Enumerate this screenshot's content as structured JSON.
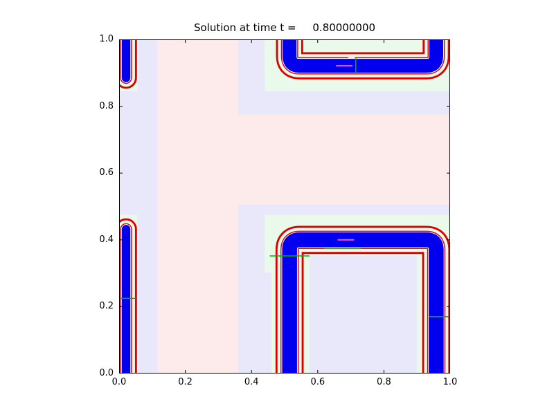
{
  "figure": {
    "background": "#ffffff"
  },
  "chart_data": {
    "type": "contour",
    "title": "Solution at time t =     0.80000000",
    "xlabel": "",
    "ylabel": "",
    "xlim": [
      0,
      1
    ],
    "ylim": [
      0,
      1
    ],
    "xticks": [
      "0.0",
      "0.2",
      "0.4",
      "0.6",
      "0.8",
      "1.0"
    ],
    "yticks": [
      "0.0",
      "0.2",
      "0.4",
      "0.6",
      "0.8",
      "1.0"
    ],
    "grid": false,
    "legend": false,
    "colors": {
      "background_lavender": "#e8e8fa",
      "background_pink": "#fdebeb",
      "background_green": "#eafaea",
      "band_blue": "#0000ee",
      "contour_red": "#dd0000",
      "contour_green": "#00b300",
      "contour_magenta": "#ff55cc",
      "contour_white": "#ffffff",
      "axis": "#000000"
    },
    "regions": [
      {
        "x0": 0.0,
        "y0": 0.0,
        "x1": 1.0,
        "y1": 1.0,
        "color": "background_lavender"
      },
      {
        "x0": 0.115,
        "y0": 0.0,
        "x1": 0.36,
        "y1": 1.0,
        "color": "background_pink"
      },
      {
        "x0": 0.115,
        "y0": 0.505,
        "x1": 1.0,
        "y1": 0.775,
        "color": "background_pink"
      },
      {
        "x0": 0.44,
        "y0": 0.845,
        "x1": 1.0,
        "y1": 1.0,
        "color": "background_green"
      },
      {
        "x0": 0.44,
        "y0": 0.302,
        "x1": 1.0,
        "y1": 0.475,
        "color": "background_green"
      },
      {
        "x0": 0.46,
        "y0": 0.0,
        "x1": 0.575,
        "y1": 0.475,
        "color": "background_green"
      },
      {
        "x0": 0.9,
        "y0": 0.0,
        "x1": 1.0,
        "y1": 0.475,
        "color": "background_green"
      },
      {
        "x0": 0.575,
        "y0": 0.0,
        "x1": 0.9,
        "y1": 0.352,
        "color": "background_lavender"
      },
      {
        "x0": 0.0,
        "y0": 0.845,
        "x1": 0.055,
        "y1": 1.0,
        "color": "background_green"
      },
      {
        "x0": 0.0,
        "y0": 0.0,
        "x1": 0.055,
        "y1": 0.475,
        "color": "background_green"
      }
    ],
    "bands": [
      {
        "name": "upper-right-interface-band",
        "points": [
          [
            0.515,
            1.0
          ],
          [
            0.515,
            0.921
          ],
          [
            0.958,
            0.921
          ],
          [
            0.958,
            1.0
          ]
        ],
        "width": 0.042,
        "corner_radius": 0.03,
        "linecap": "butt"
      },
      {
        "name": "lower-right-interface-band",
        "points": [
          [
            0.515,
            0.0
          ],
          [
            0.515,
            0.4
          ],
          [
            0.958,
            0.4
          ],
          [
            0.958,
            0.0
          ]
        ],
        "width": 0.045,
        "corner_radius": 0.03,
        "linecap": "butt"
      },
      {
        "name": "upper-left-interface-band",
        "points": [
          [
            0.021,
            1.0
          ],
          [
            0.021,
            0.885
          ]
        ],
        "width": 0.026,
        "corner_radius": 0,
        "linecap": "round"
      },
      {
        "name": "lower-left-interface-band",
        "points": [
          [
            0.021,
            0.0
          ],
          [
            0.021,
            0.432
          ]
        ],
        "width": 0.026,
        "corner_radius": 0,
        "linecap": "round"
      }
    ],
    "band_layers": [
      {
        "color": "contour_red",
        "extra": 0.04
      },
      {
        "color": "background_green",
        "extra": 0.028
      },
      {
        "color": "contour_red",
        "extra": 0.01
      },
      {
        "color": "contour_white",
        "extra": 0.004
      },
      {
        "color": "band_blue",
        "extra": 0.0
      }
    ],
    "extra_lines": [
      {
        "points": [
          [
            0.455,
            0.352
          ],
          [
            0.575,
            0.352
          ]
        ],
        "color": "contour_green",
        "width": 1.5
      },
      {
        "points": [
          [
            0.62,
            0.374
          ],
          [
            0.73,
            0.374
          ]
        ],
        "color": "contour_green",
        "width": 1.5
      },
      {
        "points": [
          [
            0.935,
            0.17
          ],
          [
            0.995,
            0.17
          ]
        ],
        "color": "contour_green",
        "width": 1.5
      },
      {
        "points": [
          [
            0.0,
            0.225
          ],
          [
            0.05,
            0.225
          ]
        ],
        "color": "contour_green",
        "width": 1.5
      },
      {
        "points": [
          [
            0.715,
            0.895
          ],
          [
            0.715,
            0.947
          ]
        ],
        "color": "contour_green",
        "width": 1.5
      },
      {
        "points": [
          [
            0.655,
            0.921
          ],
          [
            0.705,
            0.921
          ]
        ],
        "color": "contour_magenta",
        "width": 2
      },
      {
        "points": [
          [
            0.66,
            0.4
          ],
          [
            0.71,
            0.4
          ]
        ],
        "color": "contour_magenta",
        "width": 2
      },
      {
        "points": [
          [
            0.692,
            0.945
          ],
          [
            0.712,
            0.945
          ]
        ],
        "color": "contour_white",
        "width": 1.5
      }
    ],
    "tick_length": 5
  }
}
